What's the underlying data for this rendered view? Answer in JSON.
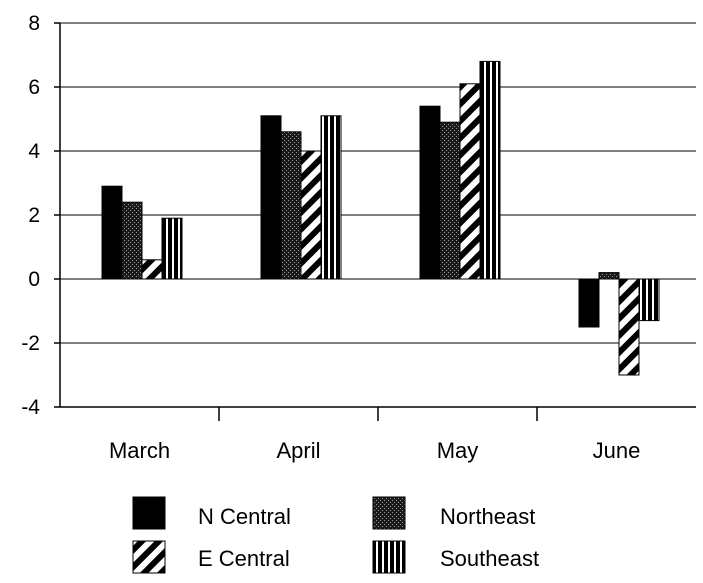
{
  "chart_data": {
    "type": "bar",
    "title": "",
    "xlabel": "",
    "ylabel": "",
    "ylim": [
      -4,
      8
    ],
    "yticks": [
      -4,
      -2,
      0,
      2,
      4,
      6,
      8
    ],
    "grid": true,
    "legend_position": "bottom",
    "categories": [
      "March",
      "April",
      "May",
      "June"
    ],
    "series": [
      {
        "name": "N Central",
        "pattern": "solid",
        "values": [
          2.9,
          5.1,
          5.4,
          -1.5
        ]
      },
      {
        "name": "Northeast",
        "pattern": "dots",
        "values": [
          2.4,
          4.6,
          4.9,
          0.2
        ]
      },
      {
        "name": "E Central",
        "pattern": "diagonal",
        "values": [
          0.6,
          4.0,
          6.1,
          -3.0
        ]
      },
      {
        "name": "Southeast",
        "pattern": "vertical",
        "values": [
          1.9,
          5.1,
          6.8,
          -1.3
        ]
      }
    ]
  }
}
